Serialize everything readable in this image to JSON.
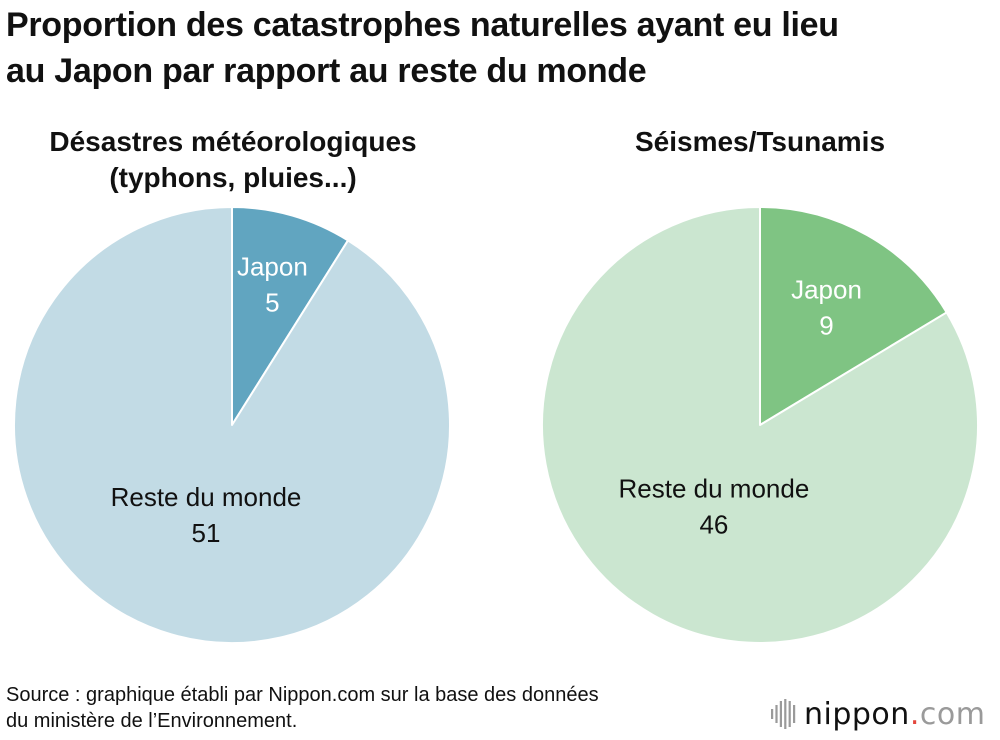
{
  "title_lines": [
    "Proportion des catastrophes naturelles ayant eu lieu",
    "au Japon par rapport au reste du monde"
  ],
  "chart_data": [
    {
      "type": "pie",
      "title_lines": [
        "Désastres météorologiques",
        "(typhons, pluies...)"
      ],
      "slices": [
        {
          "label": "Japon",
          "value": 5,
          "color": "#61a5c0",
          "label_color": "#ffffff"
        },
        {
          "label": "Reste du monde",
          "value": 51,
          "color": "#c2dbe5",
          "label_color": "#111111"
        }
      ]
    },
    {
      "type": "pie",
      "title_lines": [
        "Séismes/Tsunamis"
      ],
      "slices": [
        {
          "label": "Japon",
          "value": 9,
          "color": "#7fc483",
          "label_color": "#ffffff"
        },
        {
          "label": "Reste du monde",
          "value": 46,
          "color": "#cbe6d0",
          "label_color": "#111111"
        }
      ]
    }
  ],
  "source_lines": [
    "Source : graphique établi par Nippon.com sur la base des données",
    "du ministère de l’Environnement."
  ],
  "logo": {
    "name": "nippon",
    "dot": ".",
    "suffix": "com",
    "mark_color": "#9a9a9a",
    "accent_color": "#e3463c"
  }
}
